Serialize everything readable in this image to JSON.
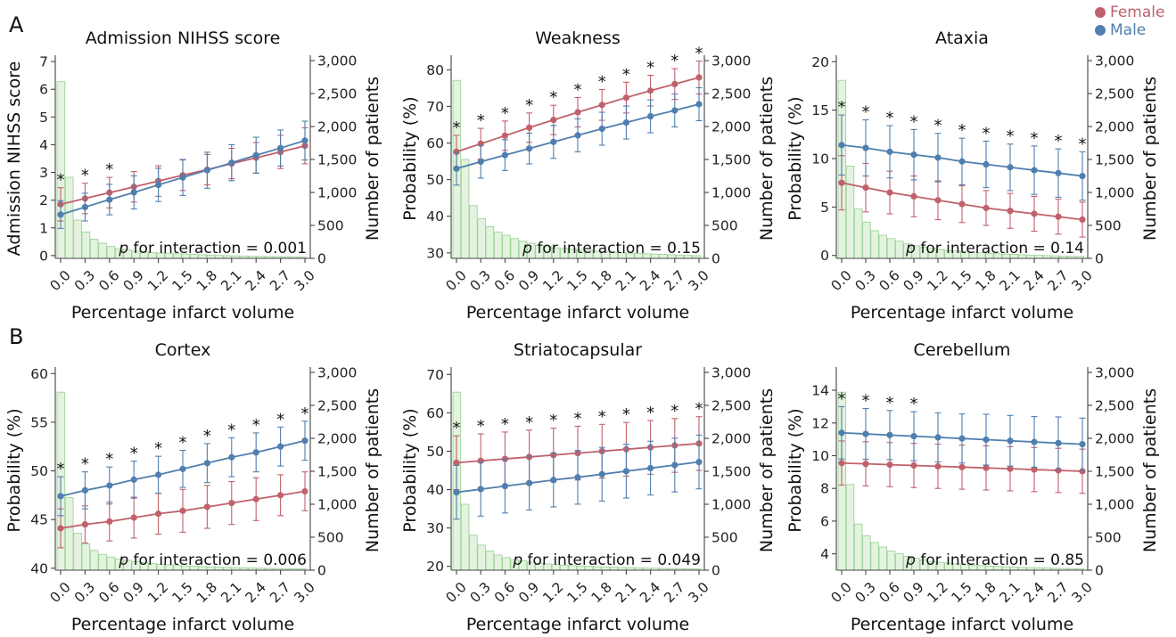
{
  "figure": {
    "panel_labels": [
      "A",
      "B"
    ],
    "legend": [
      {
        "label": "Female",
        "color": "#c0616b"
      },
      {
        "label": "Male",
        "color": "#4f7fae"
      }
    ]
  },
  "chart_data": [
    {
      "type": "line",
      "title": "Admission NIHSS score",
      "xlabel": "Percentage infarct volume",
      "ylabel": "Admission NIHSS score",
      "y2label": "Number of patients",
      "x": [
        0.0,
        0.3,
        0.6,
        0.9,
        1.2,
        1.5,
        1.8,
        2.1,
        2.4,
        2.7,
        3.0
      ],
      "xticks": [
        "0.0",
        "0.3",
        "0.6",
        "0.9",
        "1.2",
        "1.5",
        "1.8",
        "2.1",
        "2.4",
        "2.7",
        "3.0"
      ],
      "ylim": [
        -0.1,
        7.1
      ],
      "yticks": [
        0,
        1,
        2,
        3,
        4,
        5,
        6,
        7
      ],
      "ytick_labels": [
        "0",
        "1",
        "2",
        "3",
        "4",
        "5",
        "6",
        "7"
      ],
      "y2ticks": [
        0,
        500,
        1000,
        1500,
        2000,
        2500,
        3000
      ],
      "y2tick_labels": [
        "0",
        "500",
        "1,000",
        "1,500",
        "2,000",
        "2,500",
        "3,000"
      ],
      "series": [
        {
          "name": "Female",
          "color": "#c0616b",
          "values": [
            1.85,
            2.06,
            2.27,
            2.48,
            2.69,
            2.9,
            3.1,
            3.32,
            3.53,
            3.74,
            3.96
          ],
          "err": [
            0.6,
            0.55,
            0.55,
            0.55,
            0.55,
            0.55,
            0.55,
            0.55,
            0.55,
            0.6,
            0.65
          ]
        },
        {
          "name": "Male",
          "color": "#4f7fae",
          "values": [
            1.48,
            1.75,
            2.02,
            2.28,
            2.55,
            2.82,
            3.08,
            3.35,
            3.62,
            3.88,
            4.15
          ],
          "err": [
            0.5,
            0.5,
            0.55,
            0.6,
            0.6,
            0.65,
            0.65,
            0.65,
            0.65,
            0.65,
            0.7
          ]
        }
      ],
      "significant": [
        true,
        true,
        true,
        false,
        false,
        false,
        false,
        false,
        false,
        false,
        false
      ],
      "hist_counts": [
        2680,
        1230,
        580,
        400,
        290,
        230,
        180,
        150,
        130,
        110,
        100,
        90,
        80,
        75,
        70,
        65,
        60,
        55,
        50,
        45,
        40,
        38,
        35,
        32,
        30,
        28,
        26,
        24,
        22,
        20
      ],
      "annotation": {
        "italic": "p",
        "text": " for interaction = 0.001"
      }
    },
    {
      "type": "line",
      "title": "Weakness",
      "xlabel": "Percentage infarct volume",
      "ylabel": "Probability (%)",
      "y2label": "Number of patients",
      "x": [
        0.0,
        0.3,
        0.6,
        0.9,
        1.2,
        1.5,
        1.8,
        2.1,
        2.4,
        2.7,
        3.0
      ],
      "xticks": [
        "0.0",
        "0.3",
        "0.6",
        "0.9",
        "1.2",
        "1.5",
        "1.8",
        "2.1",
        "2.4",
        "2.7",
        "3.0"
      ],
      "ylim": [
        28.5,
        83
      ],
      "yticks": [
        30,
        40,
        50,
        60,
        70,
        80
      ],
      "ytick_labels": [
        "30",
        "40",
        "50",
        "60",
        "70",
        "80"
      ],
      "y2ticks": [
        0,
        500,
        1000,
        1500,
        2000,
        2500,
        3000
      ],
      "y2tick_labels": [
        "0",
        "500",
        "1,000",
        "1,500",
        "2,000",
        "2,500",
        "3,000"
      ],
      "series": [
        {
          "name": "Female",
          "color": "#c0616b",
          "values": [
            57.6,
            59.8,
            62.0,
            64.2,
            66.3,
            68.4,
            70.4,
            72.4,
            74.3,
            76.1,
            77.9
          ],
          "err": [
            4.5,
            4.2,
            4.0,
            4.0,
            4.0,
            4.0,
            4.2,
            4.2,
            4.2,
            4.2,
            4.5
          ]
        },
        {
          "name": "Male",
          "color": "#4f7fae",
          "values": [
            53.0,
            54.9,
            56.7,
            58.5,
            60.3,
            62.1,
            63.9,
            65.6,
            67.3,
            68.9,
            70.6
          ],
          "err": [
            4.5,
            4.5,
            4.2,
            4.2,
            4.5,
            4.5,
            4.5,
            4.5,
            4.5,
            4.5,
            4.5
          ]
        }
      ],
      "significant": [
        true,
        true,
        true,
        true,
        true,
        true,
        true,
        true,
        true,
        true,
        true
      ],
      "hist_counts": [
        2700,
        1500,
        800,
        600,
        480,
        400,
        350,
        300,
        260,
        230,
        200,
        180,
        160,
        150,
        140,
        130,
        120,
        110,
        100,
        90,
        85,
        80,
        75,
        70,
        65,
        60,
        55,
        50,
        45,
        40
      ],
      "annotation": {
        "italic": "p",
        "text": " for interaction = 0.15"
      }
    },
    {
      "type": "line",
      "title": "Ataxia",
      "xlabel": "Percentage infarct volume",
      "ylabel": "Probability (%)",
      "y2label": "Number of patients",
      "x": [
        0.0,
        0.3,
        0.6,
        0.9,
        1.2,
        1.5,
        1.8,
        2.1,
        2.4,
        2.7,
        3.0
      ],
      "xticks": [
        "0.0",
        "0.3",
        "0.6",
        "0.9",
        "1.2",
        "1.5",
        "1.8",
        "2.1",
        "2.4",
        "2.7",
        "3.0"
      ],
      "ylim": [
        -0.3,
        20.3
      ],
      "yticks": [
        0,
        5,
        10,
        15,
        20
      ],
      "ytick_labels": [
        "0",
        "5",
        "10",
        "15",
        "20"
      ],
      "y2ticks": [
        0,
        500,
        1000,
        1500,
        2000,
        2500,
        3000
      ],
      "y2tick_labels": [
        "0",
        "500",
        "1,000",
        "1,500",
        "2,000",
        "2,500",
        "3,000"
      ],
      "series": [
        {
          "name": "Female",
          "color": "#c0616b",
          "values": [
            7.5,
            7.0,
            6.5,
            6.1,
            5.7,
            5.3,
            4.9,
            4.6,
            4.3,
            4.0,
            3.7
          ],
          "err": [
            2.8,
            2.5,
            2.2,
            2.1,
            2.0,
            1.9,
            1.8,
            1.8,
            1.8,
            1.8,
            1.8
          ]
        },
        {
          "name": "Male",
          "color": "#4f7fae",
          "values": [
            11.4,
            11.1,
            10.7,
            10.4,
            10.1,
            9.7,
            9.4,
            9.1,
            8.8,
            8.5,
            8.2
          ],
          "err": [
            3.1,
            2.9,
            2.7,
            2.6,
            2.5,
            2.4,
            2.4,
            2.4,
            2.5,
            2.5,
            2.5
          ]
        }
      ],
      "significant": [
        true,
        true,
        true,
        true,
        true,
        true,
        true,
        true,
        true,
        true,
        true
      ],
      "hist_counts": [
        2700,
        1400,
        750,
        550,
        420,
        350,
        300,
        260,
        220,
        190,
        170,
        150,
        135,
        120,
        110,
        100,
        92,
        85,
        78,
        70,
        65,
        60,
        55,
        50,
        46,
        42,
        38,
        35,
        32,
        30
      ],
      "annotation": {
        "italic": "p",
        "text": " for interaction = 0.14"
      }
    },
    {
      "type": "line",
      "title": "Cortex",
      "xlabel": "Percentage infarct volume",
      "ylabel": "Probability (%)",
      "y2label": "Number of patients",
      "x": [
        0.0,
        0.3,
        0.6,
        0.9,
        1.2,
        1.5,
        1.8,
        2.1,
        2.4,
        2.7,
        3.0
      ],
      "xticks": [
        "0.0",
        "0.3",
        "0.6",
        "0.9",
        "1.2",
        "1.5",
        "1.8",
        "2.1",
        "2.4",
        "2.7",
        "3.0"
      ],
      "ylim": [
        39.8,
        60.3
      ],
      "yticks": [
        40,
        45,
        50,
        55,
        60
      ],
      "ytick_labels": [
        "40",
        "45",
        "50",
        "55",
        "60"
      ],
      "y2ticks": [
        0,
        500,
        1000,
        1500,
        2000,
        2500,
        3000
      ],
      "y2tick_labels": [
        "0",
        "500",
        "1,000",
        "1,500",
        "2,000",
        "2,500",
        "3,000"
      ],
      "series": [
        {
          "name": "Female",
          "color": "#c0616b",
          "values": [
            44.1,
            44.5,
            44.8,
            45.2,
            45.6,
            45.9,
            46.3,
            46.7,
            47.1,
            47.5,
            47.9
          ],
          "err": [
            2.0,
            1.9,
            2.0,
            2.1,
            2.1,
            2.2,
            2.2,
            2.2,
            2.2,
            2.1,
            2.0
          ]
        },
        {
          "name": "Male",
          "color": "#4f7fae",
          "values": [
            47.4,
            48.0,
            48.5,
            49.1,
            49.6,
            50.2,
            50.8,
            51.4,
            51.9,
            52.5,
            53.1
          ],
          "err": [
            2.0,
            1.9,
            1.9,
            1.9,
            1.9,
            1.9,
            2.0,
            2.0,
            2.0,
            2.0,
            2.0
          ]
        }
      ],
      "significant": [
        true,
        true,
        true,
        true,
        true,
        true,
        true,
        true,
        true,
        true,
        true
      ],
      "hist_counts": [
        2700,
        1100,
        560,
        400,
        300,
        240,
        200,
        170,
        150,
        130,
        115,
        100,
        90,
        80,
        72,
        65,
        60,
        55,
        50,
        46,
        42,
        38,
        35,
        32,
        30,
        28,
        26,
        24,
        22,
        20
      ],
      "annotation": {
        "italic": "p",
        "text": " for interaction = 0.006"
      }
    },
    {
      "type": "line",
      "title": "Striatocapsular",
      "xlabel": "Percentage infarct volume",
      "ylabel": "Probability (%)",
      "y2label": "Number of patients",
      "x": [
        0.0,
        0.3,
        0.6,
        0.9,
        1.2,
        1.5,
        1.8,
        2.1,
        2.4,
        2.7,
        3.0
      ],
      "xticks": [
        "0.0",
        "0.3",
        "0.6",
        "0.9",
        "1.2",
        "1.5",
        "1.8",
        "2.1",
        "2.4",
        "2.7",
        "3.0"
      ],
      "ylim": [
        19,
        71
      ],
      "yticks": [
        20,
        30,
        40,
        50,
        60,
        70
      ],
      "ytick_labels": [
        "20",
        "30",
        "40",
        "50",
        "60",
        "70"
      ],
      "y2ticks": [
        0,
        500,
        1000,
        1500,
        2000,
        2500,
        3000
      ],
      "y2tick_labels": [
        "0",
        "500",
        "1,000",
        "1,500",
        "2,000",
        "2,500",
        "3,000"
      ],
      "series": [
        {
          "name": "Female",
          "color": "#c0616b",
          "values": [
            47.0,
            47.5,
            48.0,
            48.5,
            49.0,
            49.5,
            50.0,
            50.5,
            51.0,
            51.5,
            52.0
          ],
          "err": [
            7.0,
            7.0,
            7.0,
            7.0,
            7.0,
            7.0,
            7.0,
            7.0,
            7.0,
            7.0,
            7.0
          ]
        },
        {
          "name": "Male",
          "color": "#4f7fae",
          "values": [
            39.3,
            40.1,
            40.9,
            41.7,
            42.5,
            43.2,
            44.0,
            44.8,
            45.6,
            46.4,
            47.2
          ],
          "err": [
            7.0,
            7.0,
            7.0,
            7.0,
            7.0,
            7.0,
            7.0,
            7.0,
            7.0,
            7.0,
            7.0
          ]
        }
      ],
      "significant": [
        true,
        true,
        true,
        true,
        true,
        true,
        true,
        true,
        true,
        true,
        true
      ],
      "hist_counts": [
        2700,
        1000,
        530,
        380,
        290,
        230,
        190,
        160,
        140,
        120,
        105,
        95,
        85,
        76,
        70,
        64,
        58,
        54,
        50,
        46,
        42,
        38,
        35,
        32,
        30,
        28,
        26,
        24,
        22,
        20
      ],
      "annotation": {
        "italic": "p",
        "text": " for interaction = 0.049"
      }
    },
    {
      "type": "line",
      "title": "Cerebellum",
      "xlabel": "Percentage infarct volume",
      "ylabel": "Probability (%)",
      "y2label": "Number of patients",
      "x": [
        0.0,
        0.3,
        0.6,
        0.9,
        1.2,
        1.5,
        1.8,
        2.1,
        2.4,
        2.7,
        3.0
      ],
      "xticks": [
        "0.0",
        "0.3",
        "0.6",
        "0.9",
        "1.2",
        "1.5",
        "1.8",
        "2.1",
        "2.4",
        "2.7",
        "3.0"
      ],
      "ylim": [
        3.0,
        15.2
      ],
      "yticks": [
        4,
        6,
        8,
        10,
        12,
        14
      ],
      "ytick_labels": [
        "4",
        "6",
        "8",
        "10",
        "12",
        "14"
      ],
      "y2ticks": [
        0,
        500,
        1000,
        1500,
        2000,
        2500,
        3000
      ],
      "y2tick_labels": [
        "0",
        "500",
        "1,000",
        "1,500",
        "2,000",
        "2,500",
        "3,000"
      ],
      "series": [
        {
          "name": "Female",
          "color": "#c0616b",
          "values": [
            9.55,
            9.5,
            9.45,
            9.4,
            9.35,
            9.3,
            9.25,
            9.2,
            9.15,
            9.1,
            9.05
          ],
          "err": [
            1.35,
            1.35,
            1.35,
            1.35,
            1.35,
            1.35,
            1.35,
            1.35,
            1.35,
            1.35,
            1.35
          ]
        },
        {
          "name": "Male",
          "color": "#4f7fae",
          "values": [
            11.4,
            11.33,
            11.26,
            11.19,
            11.12,
            11.05,
            10.98,
            10.91,
            10.84,
            10.77,
            10.7
          ],
          "err": [
            1.6,
            1.55,
            1.5,
            1.5,
            1.5,
            1.5,
            1.55,
            1.55,
            1.55,
            1.6,
            1.6
          ]
        }
      ],
      "significant": [
        true,
        true,
        true,
        true,
        false,
        false,
        false,
        false,
        false,
        false,
        false
      ],
      "hist_counts": [
        2700,
        1300,
        700,
        520,
        420,
        350,
        290,
        250,
        210,
        180,
        155,
        135,
        120,
        108,
        96,
        86,
        78,
        70,
        63,
        57,
        52,
        47,
        43,
        39,
        36,
        33,
        30,
        27,
        25,
        23
      ],
      "annotation": {
        "italic": "p",
        "text": " for interaction = 0.85"
      }
    }
  ]
}
